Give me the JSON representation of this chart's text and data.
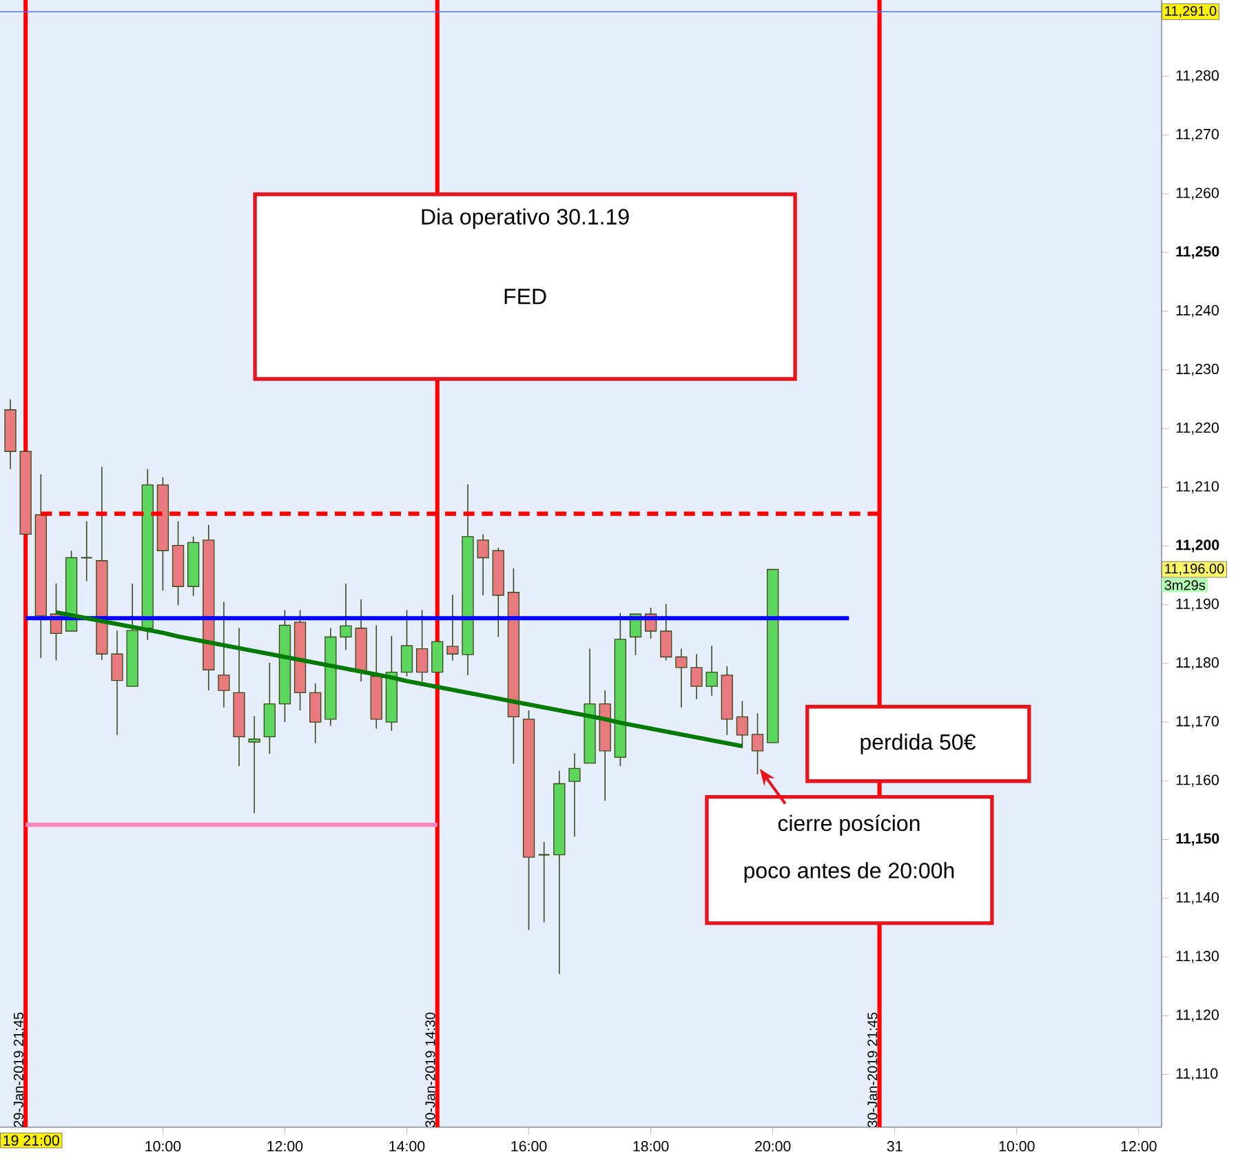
{
  "chart_data": {
    "type": "candlestick",
    "categories": [
      null,
      null,
      null,
      null,
      null,
      null,
      null,
      null,
      null,
      null,
      "10:00",
      null,
      null,
      null,
      null,
      null,
      null,
      null,
      "12:00",
      null,
      null,
      null,
      null,
      null,
      null,
      null,
      "14:00",
      null,
      null,
      null,
      null,
      null,
      null,
      null,
      "16:00",
      null,
      null,
      null,
      null,
      null,
      null,
      null,
      "18:00",
      null,
      null,
      null,
      null,
      null,
      null,
      null,
      "20:00",
      null,
      null,
      null,
      null,
      null,
      null,
      null,
      "31",
      null,
      null,
      null,
      null,
      null,
      null,
      null,
      "10:00",
      null,
      null,
      null,
      null,
      null,
      null,
      null,
      "12:00",
      null
    ],
    "ohlc": [
      [
        11223.2,
        11225.0,
        11213.1,
        11216.1
      ],
      [
        11216.1,
        11216.1,
        11202.0,
        11202.0
      ],
      [
        11205.3,
        11212.2,
        11180.9,
        11188.1
      ],
      [
        11188.4,
        11193.6,
        11180.5,
        11185.1
      ],
      [
        11185.5,
        11199.2,
        11185.5,
        11198.0
      ],
      [
        11198.0,
        11204.2,
        11194.0,
        11198.0
      ],
      [
        11197.5,
        11213.5,
        11180.6,
        11181.6
      ],
      [
        11181.6,
        11185.6,
        11167.8,
        11177.1
      ],
      [
        11176.1,
        11193.6,
        11176.1,
        11185.6
      ],
      [
        11186.0,
        11213.1,
        11184.0,
        11210.4
      ],
      [
        11210.4,
        11211.7,
        11192.4,
        11199.2
      ],
      [
        11200.1,
        11204.2,
        11189.9,
        11193.1
      ],
      [
        11193.1,
        11201.6,
        11191.5,
        11200.6
      ],
      [
        11201.0,
        11203.6,
        11175.4,
        11178.9
      ],
      [
        11178.0,
        11190.5,
        11172.5,
        11175.4
      ],
      [
        11175.0,
        11186.0,
        11162.5,
        11167.5
      ],
      [
        11166.6,
        11171.0,
        11154.5,
        11167.1
      ],
      [
        11167.5,
        11180.1,
        11164.6,
        11173.1
      ],
      [
        11173.1,
        11189.1,
        11170.0,
        11186.5
      ],
      [
        11187.0,
        11189.1,
        11172.0,
        11175.0
      ],
      [
        11175.0,
        11176.6,
        11166.4,
        11170.0
      ],
      [
        11170.5,
        11186.0,
        11169.4,
        11184.5
      ],
      [
        11184.5,
        11193.6,
        11182.3,
        11186.4
      ],
      [
        11186.0,
        11190.9,
        11176.9,
        11178.7
      ],
      [
        11177.8,
        11186.5,
        11168.9,
        11170.5
      ],
      [
        11170.0,
        11184.7,
        11168.5,
        11178.5
      ],
      [
        11178.5,
        11189.1,
        11177.8,
        11183.0
      ],
      [
        11182.5,
        11189.1,
        11176.9,
        11178.5
      ],
      [
        11178.5,
        11183.7,
        11178.5,
        11183.7
      ],
      [
        11182.9,
        11191.7,
        11180.5,
        11181.6
      ],
      [
        11181.5,
        11210.5,
        11178.0,
        11201.6
      ],
      [
        11201.0,
        11202.0,
        11191.6,
        11198.0
      ],
      [
        11199.2,
        11199.7,
        11184.5,
        11191.6
      ],
      [
        11192.1,
        11196.2,
        11162.9,
        11170.9
      ],
      [
        11170.5,
        11172.0,
        11134.6,
        11147.0
      ],
      [
        11147.4,
        11149.6,
        11135.9,
        11147.4
      ],
      [
        11147.4,
        11161.7,
        11127.1,
        11159.5
      ],
      [
        11159.9,
        11164.7,
        11150.5,
        11162.1
      ],
      [
        11163.0,
        11182.5,
        11163.0,
        11173.1
      ],
      [
        11173.1,
        11175.4,
        11156.6,
        11165.1
      ],
      [
        11164.0,
        11188.6,
        11162.5,
        11184.1
      ],
      [
        11184.5,
        11188.4,
        11181.4,
        11188.4
      ],
      [
        11188.4,
        11189.5,
        11184.2,
        11185.5
      ],
      [
        11185.5,
        11190.1,
        11180.5,
        11181.1
      ],
      [
        11181.1,
        11182.5,
        11172.5,
        11179.3
      ],
      [
        11179.3,
        11181.6,
        11173.9,
        11176.1
      ],
      [
        11176.1,
        11183.0,
        11174.5,
        11178.5
      ],
      [
        11178.0,
        11179.5,
        11167.8,
        11170.5
      ],
      [
        11170.9,
        11173.6,
        11165.6,
        11167.8
      ],
      [
        11167.9,
        11171.5,
        11161.1,
        11165.1
      ],
      [
        11166.5,
        11196.0,
        11166.5,
        11196.0
      ],
      null,
      null,
      null,
      null,
      null,
      null,
      null,
      null,
      null,
      null,
      null,
      null,
      null,
      null,
      null,
      null,
      null,
      null,
      null,
      null,
      null,
      null,
      null,
      null,
      null
    ],
    "ylim": [
      11101,
      11293
    ],
    "yticks": [
      {
        "value": 11110,
        "label": "11,110"
      },
      {
        "value": 11120,
        "label": "11,120"
      },
      {
        "value": 11130,
        "label": "11,130"
      },
      {
        "value": 11140,
        "label": "11,140"
      },
      {
        "value": 11150,
        "label": "11,150"
      },
      {
        "value": 11160,
        "label": "11,160"
      },
      {
        "value": 11170,
        "label": "11,170"
      },
      {
        "value": 11180,
        "label": "11,180"
      },
      {
        "value": 11190,
        "label": "11,190"
      },
      {
        "value": 11200,
        "label": "11,200"
      },
      {
        "value": 11210,
        "label": "11,210"
      },
      {
        "value": 11220,
        "label": "11,220"
      },
      {
        "value": 11230,
        "label": "11,230"
      },
      {
        "value": 11240,
        "label": "11,240"
      },
      {
        "value": 11250,
        "label": "11,250"
      },
      {
        "value": 11260,
        "label": "11,260"
      },
      {
        "value": 11270,
        "label": "11,270"
      },
      {
        "value": 11280,
        "label": "11,280"
      }
    ],
    "series": [
      {
        "type": "line",
        "color": "#ff0000",
        "line_style": "dashed",
        "values": [
          null,
          null,
          11205.5,
          11205.5,
          11205.5,
          11205.5,
          11205.5,
          11205.5,
          11205.5,
          11205.5,
          11205.5,
          11205.5,
          11205.5,
          11205.5,
          11205.5,
          11205.5,
          11205.5,
          11205.5,
          11205.5,
          11205.5,
          11205.5,
          11205.5,
          11205.5,
          11205.5,
          11205.5,
          11205.5,
          11205.5,
          11205.5,
          11205.5,
          11205.5,
          11205.5,
          11205.5,
          11205.5,
          11205.5,
          11205.5,
          11205.5,
          11205.5,
          11205.5,
          11205.5,
          11205.5,
          11205.5,
          11205.5,
          11205.5,
          11205.5,
          11205.5,
          11205.5,
          11205.5,
          11205.5,
          11205.5,
          11205.5,
          11205.5,
          11205.5,
          11205.5,
          11205.5,
          11205.5,
          11205.5,
          11205.5,
          11205.5,
          null,
          null,
          null,
          null,
          null,
          null,
          null,
          null,
          null,
          null,
          null,
          null,
          null,
          null,
          null,
          null,
          null,
          null
        ]
      },
      {
        "type": "line",
        "color": "#0000ff",
        "line_style": "solid",
        "values": [
          null,
          11187.7,
          11187.7,
          11187.7,
          11187.7,
          11187.7,
          11187.7,
          11187.7,
          11187.7,
          11187.7,
          11187.7,
          11187.7,
          11187.7,
          11187.7,
          11187.7,
          11187.7,
          11187.7,
          11187.7,
          11187.7,
          11187.7,
          11187.7,
          11187.7,
          11187.7,
          11187.7,
          11187.7,
          11187.7,
          11187.7,
          11187.7,
          11187.7,
          11187.7,
          11187.7,
          11187.7,
          11187.7,
          11187.7,
          11187.7,
          11187.7,
          11187.7,
          11187.7,
          11187.7,
          11187.7,
          11187.7,
          11187.7,
          11187.7,
          11187.7,
          11187.7,
          11187.7,
          11187.7,
          11187.7,
          11187.7,
          11187.7,
          11187.7,
          11187.7,
          11187.7,
          11187.7,
          11187.7,
          11187.7,
          null,
          null,
          null,
          null,
          null,
          null,
          null,
          null,
          null,
          null,
          null,
          null,
          null,
          null,
          null,
          null,
          null,
          null,
          null,
          null
        ]
      },
      {
        "type": "line",
        "color": "#ff88c0",
        "line_style": "solid",
        "values": [
          null,
          11152.5,
          11152.5,
          11152.5,
          11152.5,
          11152.5,
          11152.5,
          11152.5,
          11152.5,
          11152.5,
          11152.5,
          11152.5,
          11152.5,
          11152.5,
          11152.5,
          11152.5,
          11152.5,
          11152.5,
          11152.5,
          11152.5,
          11152.5,
          11152.5,
          11152.5,
          11152.5,
          11152.5,
          11152.5,
          11152.5,
          11152.5,
          11152.5,
          null,
          null,
          null,
          null,
          null,
          null,
          null,
          null,
          null,
          null,
          null,
          null,
          null,
          null,
          null,
          null,
          null,
          null,
          null,
          null,
          null,
          null,
          null,
          null,
          null,
          null,
          null,
          null,
          null,
          null,
          null,
          null,
          null,
          null,
          null,
          null,
          null,
          null,
          null,
          null,
          null,
          null,
          null,
          null,
          null,
          null,
          null
        ]
      },
      {
        "type": "line",
        "color": "#007a00",
        "line_style": "solid",
        "values": [
          null,
          null,
          null,
          11188.7,
          11188.2,
          11187.7,
          11187.2,
          11186.7,
          11186.2,
          11185.7,
          11185.2,
          11184.6,
          11184.1,
          11183.6,
          11183.1,
          11182.6,
          11182.1,
          11181.6,
          11181.1,
          11180.6,
          11180.1,
          11179.6,
          11179.1,
          11178.6,
          11178.1,
          11177.6,
          11177.0,
          11176.5,
          11176.0,
          11175.5,
          11175.0,
          11174.5,
          11174.0,
          11173.5,
          11173.0,
          11172.5,
          11172.0,
          11171.5,
          11171.0,
          11170.5,
          11169.9,
          11169.4,
          11168.9,
          11168.4,
          11167.9,
          11167.4,
          11166.9,
          11166.4,
          11165.9,
          null,
          null,
          null,
          null,
          null,
          null,
          null,
          null,
          null,
          null,
          null,
          null,
          null,
          null,
          null,
          null,
          null,
          null,
          null,
          null,
          null,
          null,
          null,
          null,
          null,
          null,
          null
        ]
      }
    ],
    "ref_lines": [
      {
        "axis": "y",
        "value": 11291,
        "label": "11,291.0",
        "color": "#5070ff"
      }
    ],
    "annotations": [
      "Dia operativo 30.1.19",
      "FED",
      "perdida 50€",
      "cierre posícion",
      "poco antes de 20:00h",
      "11,196.00",
      "3m29s",
      "19 21:00",
      "29-Jan-2019 21:45",
      "30-Jan-2019 14:30",
      "30-Jan-2019 21:45"
    ]
  }
}
